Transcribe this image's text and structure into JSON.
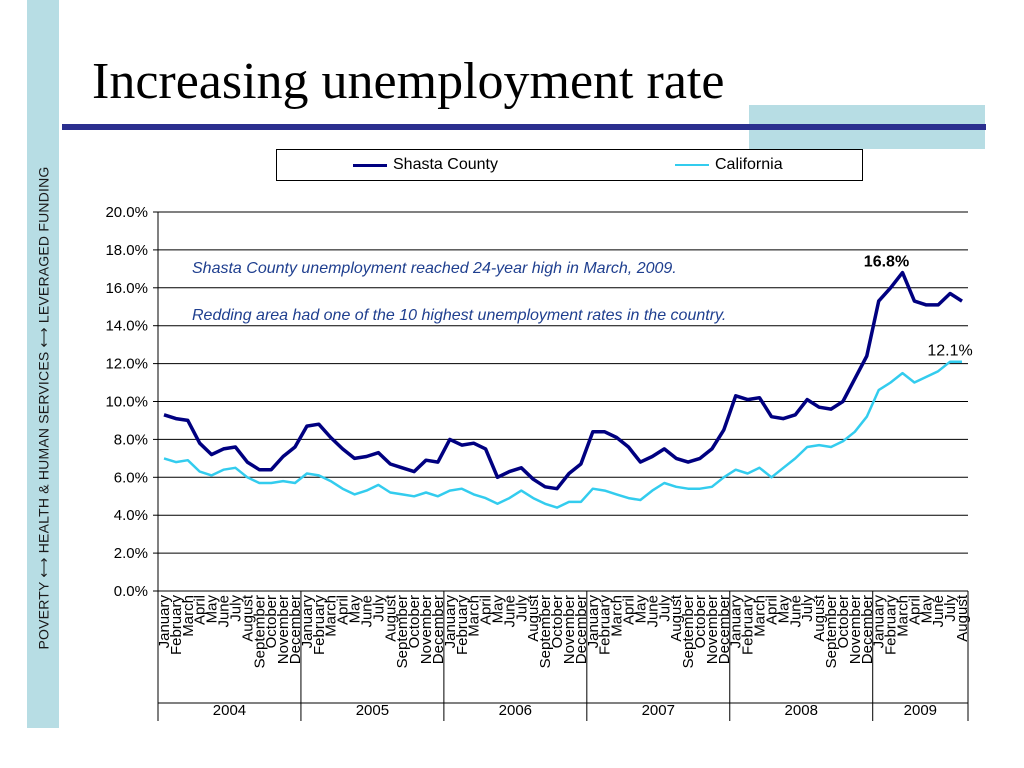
{
  "slide": {
    "title": "Increasing unemployment rate",
    "side_label": "POVERTY  ⟷  HEALTH & HUMAN SERVICES  ⟷  LEVERAGED FUNDING",
    "accent_color": "#2b2f8f",
    "band_color": "#b7dde4"
  },
  "chart_data": {
    "type": "line",
    "title": "",
    "ylim": [
      0,
      20
    ],
    "yticks": [
      "0.0%",
      "2.0%",
      "4.0%",
      "6.0%",
      "8.0%",
      "10.0%",
      "12.0%",
      "14.0%",
      "16.0%",
      "18.0%",
      "20.0%"
    ],
    "months": [
      "January",
      "February",
      "March",
      "April",
      "May",
      "June",
      "July",
      "August",
      "September",
      "October",
      "November",
      "December"
    ],
    "final_months": [
      "January",
      "February",
      "March",
      "April",
      "May",
      "June",
      "July",
      "August"
    ],
    "years": [
      "2004",
      "2005",
      "2006",
      "2007",
      "2008",
      "2009"
    ],
    "series": [
      {
        "name": "Shasta County",
        "color": "#000080",
        "values": [
          9.3,
          9.1,
          9.0,
          7.8,
          7.2,
          7.5,
          7.6,
          6.8,
          6.4,
          6.4,
          7.1,
          7.6,
          8.7,
          8.8,
          8.1,
          7.5,
          7.0,
          7.1,
          7.3,
          6.7,
          6.5,
          6.3,
          6.9,
          6.8,
          8.0,
          7.7,
          7.8,
          7.5,
          6.0,
          6.3,
          6.5,
          5.9,
          5.5,
          5.4,
          6.2,
          6.7,
          8.4,
          8.4,
          8.1,
          7.6,
          6.8,
          7.1,
          7.5,
          7.0,
          6.8,
          7.0,
          7.5,
          8.5,
          10.3,
          10.1,
          10.2,
          9.2,
          9.1,
          9.3,
          10.1,
          9.7,
          9.6,
          10.0,
          11.2,
          12.4,
          15.3,
          16.0,
          16.8,
          15.3,
          15.1,
          15.1,
          15.7,
          15.3
        ]
      },
      {
        "name": "California",
        "color": "#33ccee",
        "values": [
          7.0,
          6.8,
          6.9,
          6.3,
          6.1,
          6.4,
          6.5,
          6.0,
          5.7,
          5.7,
          5.8,
          5.7,
          6.2,
          6.1,
          5.8,
          5.4,
          5.1,
          5.3,
          5.6,
          5.2,
          5.1,
          5.0,
          5.2,
          5.0,
          5.3,
          5.4,
          5.1,
          4.9,
          4.6,
          4.9,
          5.3,
          4.9,
          4.6,
          4.4,
          4.7,
          4.7,
          5.4,
          5.3,
          5.1,
          4.9,
          4.8,
          5.3,
          5.7,
          5.5,
          5.4,
          5.4,
          5.5,
          6.0,
          6.4,
          6.2,
          6.5,
          6.0,
          6.5,
          7.0,
          7.6,
          7.7,
          7.6,
          7.9,
          8.4,
          9.2,
          10.6,
          11.0,
          11.5,
          11.0,
          11.3,
          11.6,
          12.1,
          12.1
        ]
      }
    ],
    "annotations": [
      "Shasta County unemployment reached 24-year high in March, 2009.",
      "Redding area had one of the 10 highest unemployment rates in the country."
    ],
    "peak_label": "16.8%",
    "end_label": "12.1%"
  }
}
